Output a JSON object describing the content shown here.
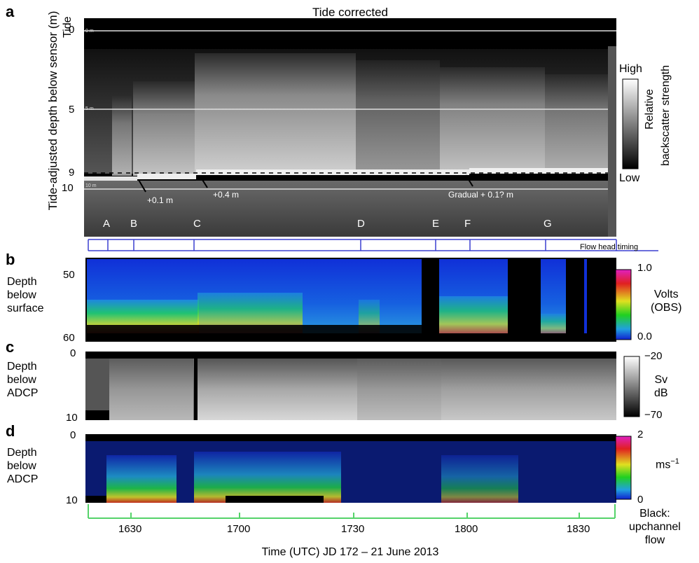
{
  "panel_letters": [
    "a",
    "b",
    "c",
    "d"
  ],
  "panel_a": {
    "title": "Tide corrected",
    "tide_label": "Tide",
    "ylabel": "Tide-adjusted depth below sensor (m)",
    "yticks": [
      "0",
      "5",
      "9",
      "10"
    ],
    "inner_depth_labels": [
      "0 m",
      "5 m",
      "10 m"
    ],
    "colorbar_high": "High",
    "colorbar_low": "Low",
    "colorbar_title_1": "Relative",
    "colorbar_title_2": "backscatter strength",
    "annotations": [
      "+0.1 m",
      "+0.4 m",
      "Gradual + 0.1? m"
    ],
    "flow_letters": [
      "A",
      "B",
      "C",
      "D",
      "E",
      "F",
      "G"
    ],
    "flow_head_label": "Flow head timing"
  },
  "panel_b": {
    "ylabel": [
      "Depth",
      "below",
      "surface"
    ],
    "yticks": [
      "50",
      "60"
    ],
    "colorbar_max": "1.0",
    "colorbar_min": "0.0",
    "colorbar_title": [
      "Volts",
      "(OBS)"
    ]
  },
  "panel_c": {
    "ylabel": [
      "Depth",
      "below",
      "ADCP"
    ],
    "yticks": [
      "0",
      "10"
    ],
    "colorbar_max": "−20",
    "colorbar_min": "−70",
    "colorbar_title": [
      "Sv",
      "dB"
    ]
  },
  "panel_d": {
    "ylabel": [
      "Depth",
      "below",
      "ADCP"
    ],
    "yticks": [
      "0",
      "10"
    ],
    "colorbar_max": "2",
    "colorbar_min": "0",
    "colorbar_unit": "ms",
    "colorbar_unit_sup": "−1",
    "colorbar_note": [
      "Black:",
      "upchannel",
      "flow"
    ]
  },
  "time_axis": {
    "ticks": [
      "1630",
      "1700",
      "1730",
      "1800",
      "1830"
    ],
    "label": "Time (UTC) JD 172 – 21 June 2013"
  },
  "colors": {
    "flow_head_line": "#3a3fd0",
    "time_axis_line": "#55d36a",
    "dashed_line": "#000000"
  }
}
